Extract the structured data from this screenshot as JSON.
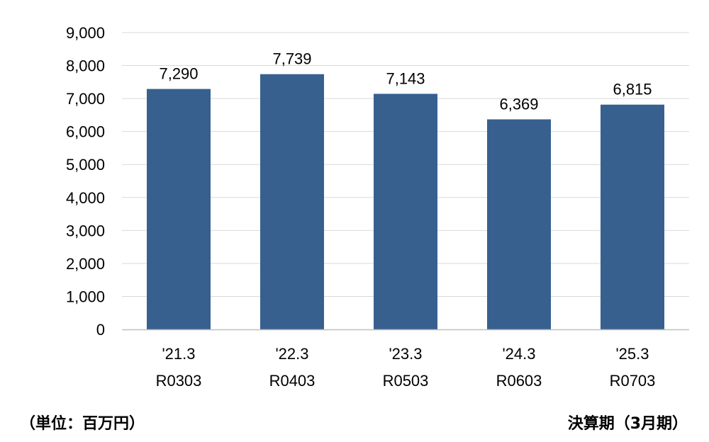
{
  "chart_data": {
    "type": "bar",
    "categories": [
      [
        "'21.3",
        "R0303"
      ],
      [
        "'22.3",
        "R0403"
      ],
      [
        "'23.3",
        "R0503"
      ],
      [
        "'24.3",
        "R0603"
      ],
      [
        "'25.3",
        "R0703"
      ]
    ],
    "values": [
      7290,
      7739,
      7143,
      6369,
      6815
    ],
    "data_labels": [
      "7,290",
      "7,739",
      "7,143",
      "6,369",
      "6,815"
    ],
    "y_ticks": [
      "0",
      "1,000",
      "2,000",
      "3,000",
      "4,000",
      "5,000",
      "6,000",
      "7,000",
      "8,000",
      "9,000"
    ],
    "ylim": [
      0,
      9000
    ],
    "y_step": 1000,
    "grid": true,
    "legend": "none",
    "bar_color": "#37608F",
    "grid_color": "#D9D9D9",
    "axis_color": "#BFBFBF"
  },
  "footer": {
    "unit_note": "（単位：百万円）",
    "period_note": "決算期（3月期）"
  }
}
